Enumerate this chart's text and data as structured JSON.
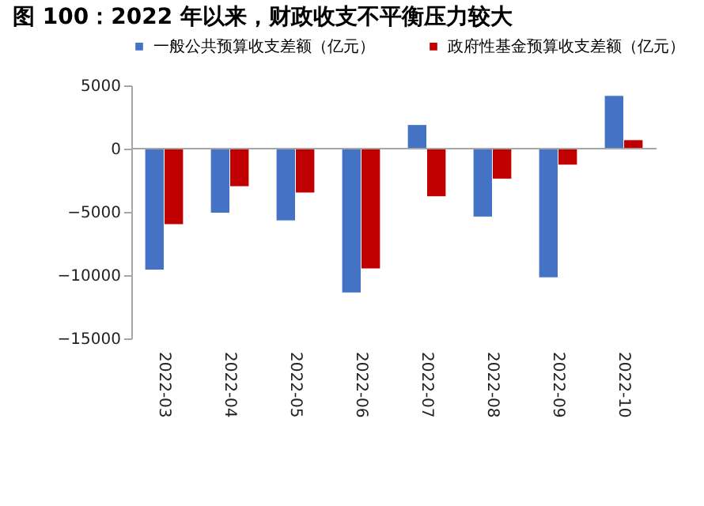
{
  "chart_data": {
    "type": "bar",
    "title": "图 100：2022 年以来，财政收支不平衡压力较大",
    "categories": [
      "2022-03",
      "2022-04",
      "2022-05",
      "2022-06",
      "2022-07",
      "2022-08",
      "2022-09",
      "2022-10"
    ],
    "series": [
      {
        "name": "一般公共预算收支差额（亿元）",
        "color": "#4472c4",
        "values": [
          -9600,
          -5100,
          -5700,
          -11400,
          1900,
          -5400,
          -10200,
          4200
        ]
      },
      {
        "name": "政府性基金预算收支差额（亿元）",
        "color": "#c00000",
        "values": [
          -6000,
          -3000,
          -3500,
          -9500,
          -3800,
          -2400,
          -1300,
          700
        ]
      }
    ],
    "ylim": [
      -15000,
      5000
    ],
    "yticks": [
      -15000,
      -10000,
      -5000,
      0,
      5000
    ],
    "ref_lines": [
      {
        "axis": "y",
        "value": 0,
        "color": "#a6a6a6"
      }
    ],
    "grid": false,
    "legend": "top"
  }
}
